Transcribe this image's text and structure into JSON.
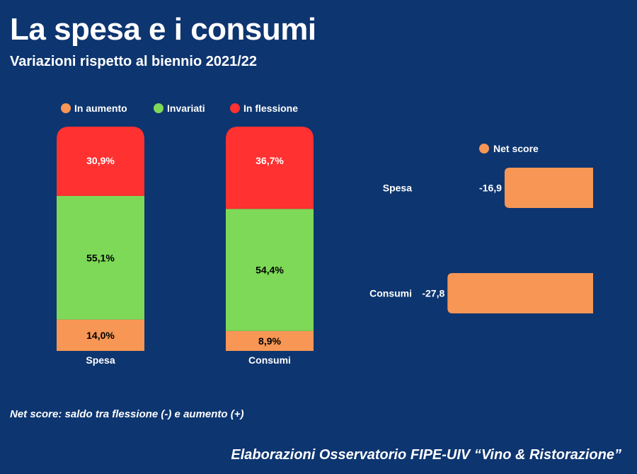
{
  "header": {
    "title": "La spesa e i consumi",
    "subtitle": "Variazioni rispetto al biennio 2021/22"
  },
  "footer": {
    "note": "Net score: saldo tra flessione (-) e aumento (+)",
    "source": "Elaborazioni Osservatorio FIPE-UIV “Vino & Ristorazione”"
  },
  "colors": {
    "background": "#0d3570",
    "aumento": "#f79655",
    "invariati": "#7dd957",
    "flessione": "#ff3131",
    "text_light": "#ffffff",
    "text_dark": "#000000"
  },
  "chart_data": [
    {
      "type": "bar",
      "stacked": true,
      "percent": true,
      "categories": [
        "Spesa",
        "Consumi"
      ],
      "series": [
        {
          "name": "In aumento",
          "color_key": "aumento",
          "values": [
            14.0,
            8.9
          ],
          "labels": [
            "14,0%",
            "8,9%"
          ]
        },
        {
          "name": "Invariati",
          "color_key": "invariati",
          "values": [
            55.1,
            54.4
          ],
          "labels": [
            "55,1%",
            "54,4%"
          ]
        },
        {
          "name": "In flessione",
          "color_key": "flessione",
          "values": [
            30.9,
            36.7
          ],
          "labels": [
            "30,9%",
            "36,7%"
          ]
        }
      ],
      "legend_position": "top",
      "ylim": [
        0,
        100
      ]
    },
    {
      "type": "bar",
      "orientation": "horizontal",
      "categories": [
        "Spesa",
        "Consumi"
      ],
      "series": [
        {
          "name": "Net score",
          "color_key": "aumento",
          "values": [
            -16.9,
            -27.8
          ],
          "labels": [
            "-16,9",
            "-27,8"
          ]
        }
      ],
      "legend_position": "top",
      "xlim": [
        -30,
        0
      ]
    }
  ]
}
